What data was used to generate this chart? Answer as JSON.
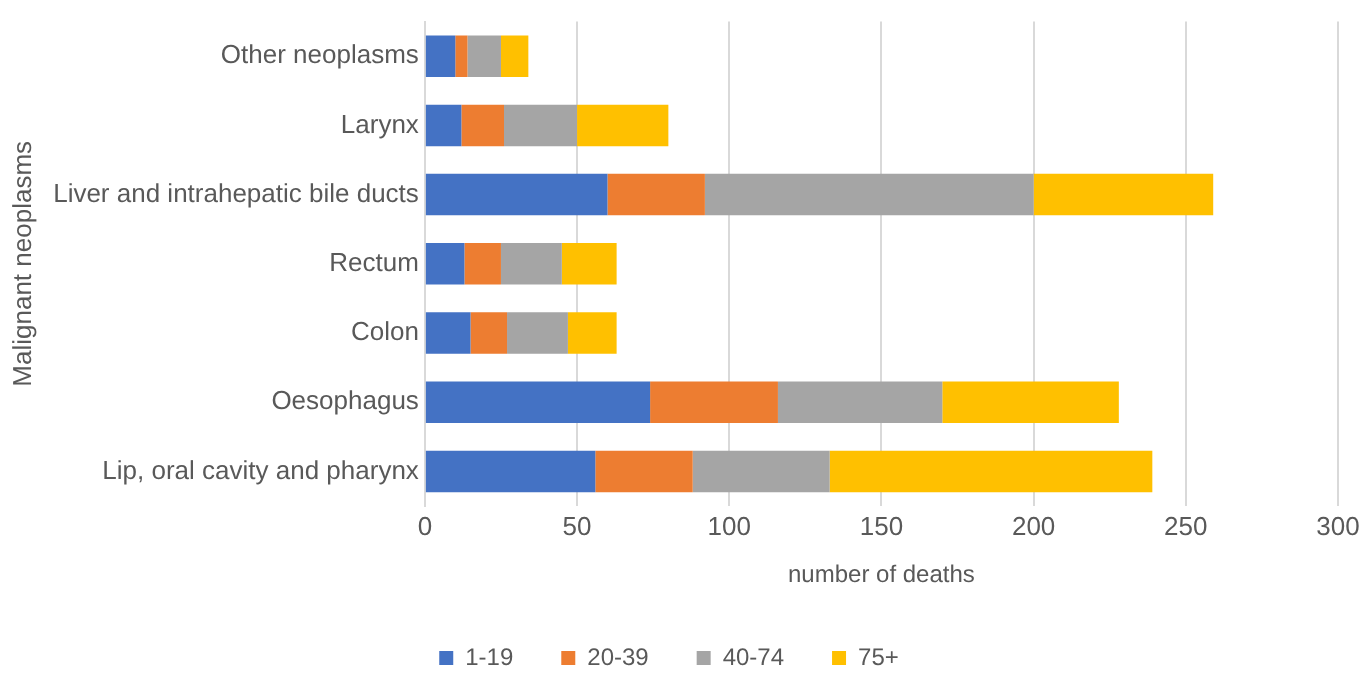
{
  "chart_data": {
    "type": "bar",
    "orientation": "horizontal",
    "stacked": true,
    "ylabel": "Malignant neoplasms",
    "xlabel": "number of deaths",
    "categories": [
      "Other neoplasms",
      "Larynx",
      "Liver and intrahepatic bile ducts",
      "Rectum",
      "Colon",
      "Oesophagus",
      "Lip, oral cavity and pharynx"
    ],
    "series": [
      {
        "name": "1-19",
        "color": "#4472c4",
        "values": [
          10,
          12,
          60,
          13,
          15,
          74,
          56
        ]
      },
      {
        "name": "20-39",
        "color": "#ed7d31",
        "values": [
          4,
          14,
          32,
          12,
          12,
          42,
          32
        ]
      },
      {
        "name": "40-74",
        "color": "#a5a5a5",
        "values": [
          11,
          24,
          108,
          20,
          20,
          54,
          45
        ]
      },
      {
        "name": "75+",
        "color": "#ffc000",
        "values": [
          9,
          30,
          59,
          18,
          16,
          58,
          106
        ]
      }
    ],
    "xlim": [
      0,
      300
    ],
    "xticks": [
      0,
      50,
      100,
      150,
      200,
      250,
      300
    ],
    "grid": "x",
    "legend": "bottom"
  }
}
